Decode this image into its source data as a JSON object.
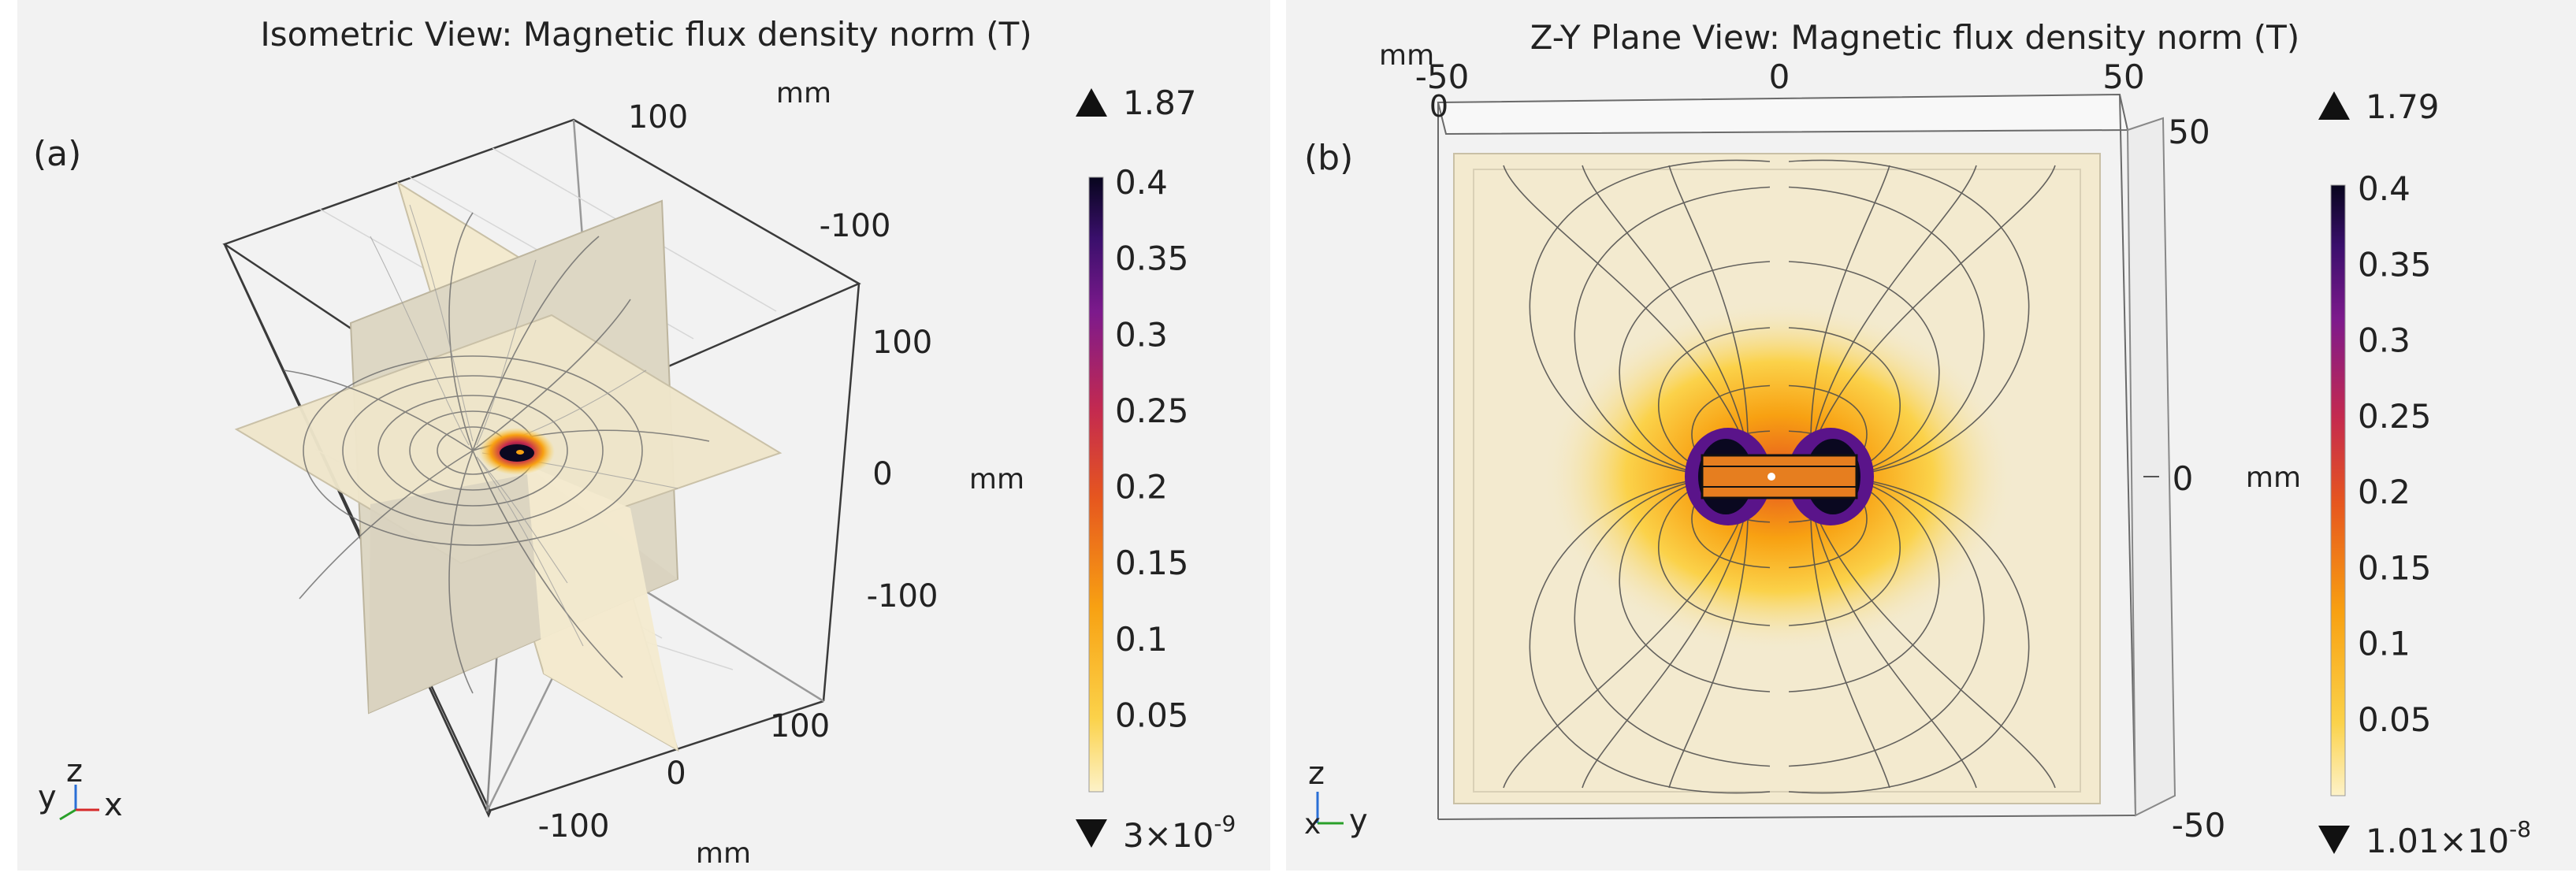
{
  "chart_data": [
    {
      "type": "heatmap",
      "panel_label": "(a)",
      "title": "Isometric View: Magnetic flux density norm (T)",
      "view": "isometric 3D, three orthogonal slice planes with field lines",
      "axis_unit": "mm",
      "axes": {
        "top": [
          "100"
        ],
        "right": [
          "-100",
          "100",
          "0",
          "-100"
        ],
        "bottom": [
          "100",
          "0",
          "-100"
        ]
      },
      "colorbar": {
        "max_marker": "1.87",
        "min_marker": "3×10",
        "min_marker_exp": "-9",
        "ticks": [
          "0.4",
          "0.35",
          "0.3",
          "0.25",
          "0.2",
          "0.15",
          "0.1",
          "0.05"
        ],
        "tick_values": [
          0.4,
          0.35,
          0.3,
          0.25,
          0.2,
          0.15,
          0.1,
          0.05
        ],
        "range": [
          0,
          0.4
        ]
      },
      "triad": {
        "labels": [
          "y",
          "z",
          "x"
        ]
      }
    },
    {
      "type": "heatmap",
      "panel_label": "(b)",
      "title": "Z-Y Plane View: Magnetic flux density norm (T)",
      "view": "Z-Y plane, field lines around central magnet",
      "axis_unit": "mm",
      "axes": {
        "top": [
          "-50",
          "0",
          "50"
        ],
        "top_left": "0",
        "right": [
          "50",
          "0",
          "-50"
        ]
      },
      "colorbar": {
        "max_marker": "1.79",
        "min_marker": "1.01×10",
        "min_marker_exp": "-8",
        "ticks": [
          "0.4",
          "0.35",
          "0.3",
          "0.25",
          "0.2",
          "0.15",
          "0.1",
          "0.05"
        ],
        "tick_values": [
          0.4,
          0.35,
          0.3,
          0.25,
          0.2,
          0.15,
          0.1,
          0.05
        ],
        "range": [
          0,
          0.4
        ]
      },
      "triad": {
        "labels": [
          "z",
          "x",
          "y"
        ]
      }
    }
  ],
  "colors": {
    "background": "#ffffff",
    "panel_bg": "#f2f2f2",
    "slice_fill": "#f3eacf",
    "slice_fill_shade": "#ddd7c4",
    "field_line": "#4a4a4a",
    "box_line": "#333333"
  }
}
